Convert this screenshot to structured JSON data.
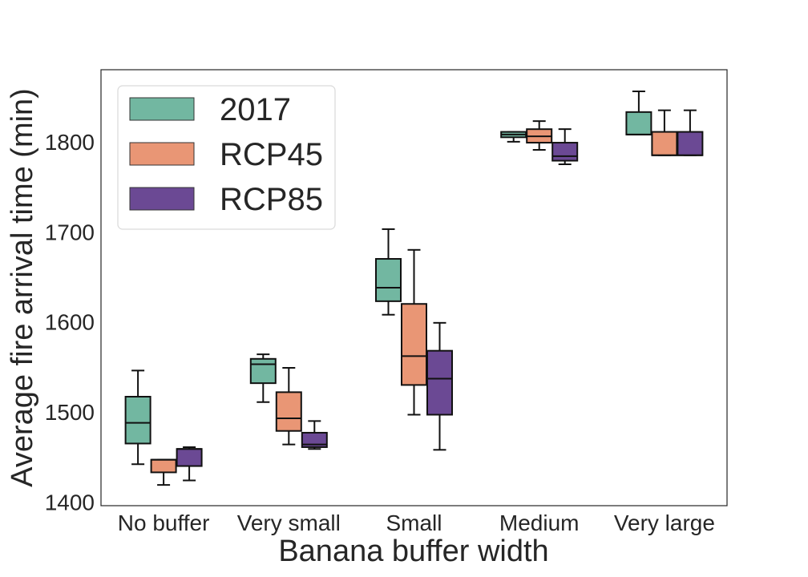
{
  "chart_data": {
    "type": "box",
    "xlabel": "Banana buffer width",
    "ylabel": "Average fire arrival time (min)",
    "categories": [
      "No buffer",
      "Very small",
      "Small",
      "Medium",
      "Very large"
    ],
    "ylim": [
      1396,
      1880
    ],
    "yticks": [
      1400,
      1500,
      1600,
      1700,
      1800
    ],
    "grid": false,
    "legend": {
      "position": "top-left"
    },
    "series": [
      {
        "name": "2017",
        "color": "#72b7a1",
        "boxes": [
          {
            "whislo": 1442,
            "q1": 1465,
            "med": 1488,
            "q3": 1517,
            "whishi": 1546
          },
          {
            "whislo": 1511,
            "q1": 1532,
            "med": 1553,
            "q3": 1559,
            "whishi": 1564
          },
          {
            "whislo": 1608,
            "q1": 1623,
            "med": 1638,
            "q3": 1670,
            "whishi": 1703
          },
          {
            "whislo": 1800,
            "q1": 1805,
            "med": 1808,
            "q3": 1811,
            "whishi": 1811
          },
          {
            "whislo": 1808,
            "q1": 1808,
            "med": 1808,
            "q3": 1833,
            "whishi": 1856
          }
        ]
      },
      {
        "name": "RCP45",
        "color": "#e99675",
        "boxes": [
          {
            "whislo": 1419,
            "q1": 1433,
            "med": 1447,
            "q3": 1447,
            "whishi": 1447
          },
          {
            "whislo": 1464,
            "q1": 1479,
            "med": 1493,
            "q3": 1522,
            "whishi": 1549
          },
          {
            "whislo": 1497,
            "q1": 1530,
            "med": 1562,
            "q3": 1620,
            "whishi": 1680
          },
          {
            "whislo": 1791,
            "q1": 1799,
            "med": 1806,
            "q3": 1814,
            "whishi": 1823
          },
          {
            "whislo": 1785,
            "q1": 1785,
            "med": 1785,
            "q3": 1811,
            "whishi": 1835
          }
        ]
      },
      {
        "name": "RCP85",
        "color": "#6b4994",
        "boxes": [
          {
            "whislo": 1424,
            "q1": 1440,
            "med": 1459,
            "q3": 1459,
            "whishi": 1461
          },
          {
            "whislo": 1459,
            "q1": 1461,
            "med": 1464,
            "q3": 1477,
            "whishi": 1490
          },
          {
            "whislo": 1458,
            "q1": 1497,
            "med": 1537,
            "q3": 1568,
            "whishi": 1599
          },
          {
            "whislo": 1775,
            "q1": 1779,
            "med": 1784,
            "q3": 1799,
            "whishi": 1814
          },
          {
            "whislo": 1785,
            "q1": 1785,
            "med": 1785,
            "q3": 1811,
            "whishi": 1835
          }
        ]
      }
    ]
  }
}
